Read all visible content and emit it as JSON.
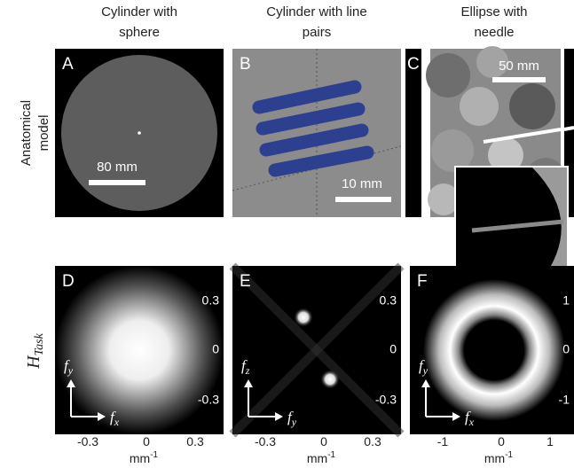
{
  "columns": [
    {
      "line1": "Cylinder with",
      "line2": "sphere"
    },
    {
      "line1": "Cylinder with line",
      "line2": "pairs"
    },
    {
      "line1": "Ellipse with",
      "line2": "needle"
    }
  ],
  "rows": [
    {
      "line1": "Anatomical",
      "line2": "model"
    },
    {
      "symbol": "H",
      "subscript": "Task"
    }
  ],
  "panels": [
    {
      "letter": "A",
      "scale_bar": "80 mm"
    },
    {
      "letter": "B",
      "scale_bar": "10 mm"
    },
    {
      "letter": "C",
      "scale_bar": "50 mm"
    },
    {
      "letter": "D",
      "right_ticks": [
        "0.3",
        "0",
        "-0.3"
      ],
      "bottom_ticks": [
        "-0.3",
        "0",
        "0.3"
      ],
      "axis_v": {
        "symbol": "f",
        "subscript": "y"
      },
      "axis_h": {
        "symbol": "f",
        "subscript": "x"
      }
    },
    {
      "letter": "E",
      "right_ticks": [
        "0.3",
        "0",
        "-0.3"
      ],
      "bottom_ticks": [
        "-0.3",
        "0",
        "0.3"
      ],
      "axis_v": {
        "symbol": "f",
        "subscript": "z"
      },
      "axis_h": {
        "symbol": "f",
        "subscript": "y"
      }
    },
    {
      "letter": "F",
      "right_ticks": [
        "1",
        "0",
        "-1"
      ],
      "bottom_ticks": [
        "-1",
        "0",
        "1"
      ],
      "axis_v": {
        "symbol": "f",
        "subscript": "y"
      },
      "axis_h": {
        "symbol": "f",
        "subscript": "x"
      }
    }
  ],
  "unit": {
    "base": "mm",
    "exponent": "-1"
  }
}
